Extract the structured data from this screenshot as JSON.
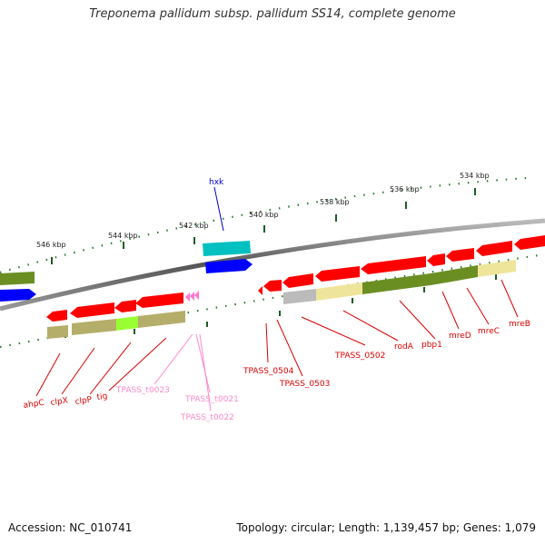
{
  "title": "Treponema pallidum subsp. pallidum SS14, complete genome",
  "footer": {
    "accession": "Accession: NC_010741",
    "summary": "Topology: circular; Length: 1,139,457 bp; Genes: 1,079"
  },
  "scale_labels": [
    "546 kbp",
    "544 kbp",
    "542 kbp",
    "540 kbp",
    "538 kbp",
    "536 kbp",
    "534 kbp"
  ],
  "colors": {
    "cds": "#ff0000",
    "trna": "#ff66cc",
    "hxk_track": "#00cccc",
    "blue_track": "#0000ff",
    "cog_olive": "#6b8e23",
    "cog_khaki": "#b5ad6a",
    "cog_lightyellow": "#efe59a",
    "cog_gray": "#bbbbbb",
    "cog_lime": "#99ff33",
    "backbone": "#888888"
  },
  "gene_labels": {
    "hxk": "hxk",
    "ahpC": "ahpC",
    "clpX": "clpX",
    "clpP": "clpP",
    "tig": "tig",
    "TPASS_t0023": "TPASS_t0023",
    "TPASS_t0021": "TPASS_t0021",
    "TPASS_t0022": "TPASS_t0022",
    "TPASS_0504": "TPASS_0504",
    "TPASS_0503": "TPASS_0503",
    "TPASS_0502": "TPASS_0502",
    "rodA": "rodA",
    "pbp1": "pbp1",
    "mreD": "mreD",
    "mreC": "mreC",
    "mreB": "mreB"
  }
}
